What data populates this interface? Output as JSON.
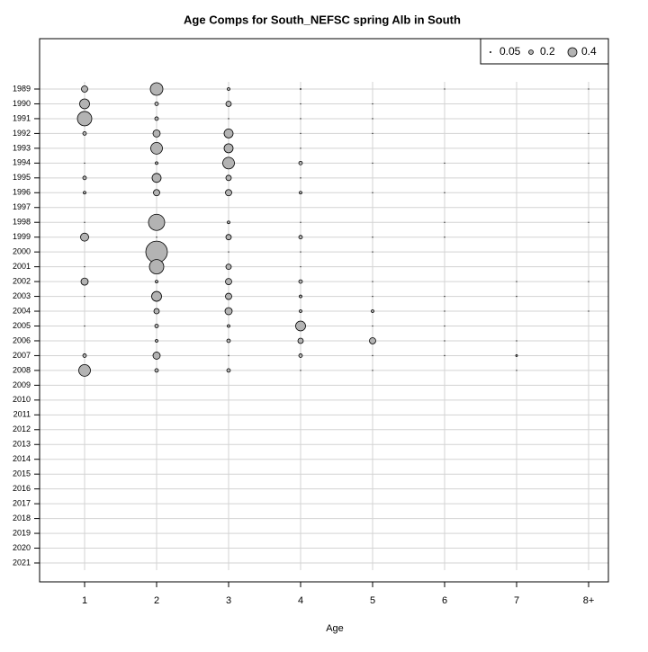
{
  "chart_data": {
    "type": "bubble",
    "title": "Age Comps for South_NEFSC spring Alb in South",
    "x_label": "Age",
    "categories": [
      "1",
      "2",
      "3",
      "4",
      "5",
      "6",
      "7",
      "8+"
    ],
    "years": [
      "1989",
      "1990",
      "1991",
      "1992",
      "1993",
      "1994",
      "1995",
      "1996",
      "1997",
      "1998",
      "1999",
      "2000",
      "2001",
      "2002",
      "2003",
      "2004",
      "2005",
      "2006",
      "2007",
      "2008",
      "2009",
      "2010",
      "2011",
      "2012",
      "2013",
      "2014",
      "2015",
      "2016",
      "2017",
      "2018",
      "2019",
      "2020",
      "2021"
    ],
    "values": [
      [
        0.28,
        0.56,
        0.12,
        0.04,
        null,
        0.02,
        null,
        0.02
      ],
      [
        0.44,
        0.16,
        0.24,
        0.02,
        0.02,
        null,
        null,
        null
      ],
      [
        0.64,
        0.16,
        0.02,
        0.02,
        0.02,
        null,
        null,
        null
      ],
      [
        0.16,
        0.32,
        0.4,
        0.02,
        0.02,
        null,
        null,
        0.02
      ],
      [
        null,
        0.52,
        0.4,
        0.02,
        null,
        null,
        null,
        null
      ],
      [
        0.02,
        0.12,
        0.52,
        0.16,
        0.02,
        0.02,
        null,
        0.02
      ],
      [
        0.16,
        0.4,
        0.24,
        0.02,
        null,
        null,
        null,
        null
      ],
      [
        0.12,
        0.28,
        0.28,
        0.12,
        0.02,
        0.02,
        null,
        null
      ],
      [
        null,
        null,
        null,
        null,
        null,
        null,
        null,
        null
      ],
      [
        0.02,
        0.72,
        0.12,
        0.02,
        null,
        0.02,
        null,
        0.02
      ],
      [
        0.36,
        0.02,
        0.24,
        0.16,
        0.02,
        0.02,
        null,
        null
      ],
      [
        null,
        0.96,
        0.02,
        0.02,
        0.02,
        null,
        null,
        null
      ],
      [
        0.02,
        0.64,
        0.24,
        0.02,
        null,
        null,
        null,
        null
      ],
      [
        0.32,
        0.12,
        0.28,
        0.16,
        0.02,
        null,
        0.02,
        0.02
      ],
      [
        0.02,
        0.44,
        0.28,
        0.12,
        0.02,
        0.02,
        0.02,
        null
      ],
      [
        null,
        0.24,
        0.32,
        0.12,
        0.12,
        0.02,
        null,
        0.02
      ],
      [
        0.02,
        0.16,
        0.12,
        0.44,
        0.02,
        0.02,
        null,
        null
      ],
      [
        null,
        0.12,
        0.16,
        0.24,
        0.28,
        0.02,
        0.02,
        null
      ],
      [
        0.16,
        0.32,
        0.02,
        0.16,
        0.02,
        0.02,
        0.08,
        null
      ],
      [
        0.52,
        0.16,
        0.16,
        0.02,
        0.02,
        null,
        0.02,
        null
      ],
      [
        null,
        null,
        null,
        null,
        null,
        null,
        null,
        null
      ],
      [
        null,
        null,
        null,
        null,
        null,
        null,
        null,
        null
      ],
      [
        null,
        null,
        null,
        null,
        null,
        null,
        null,
        null
      ],
      [
        null,
        null,
        null,
        null,
        null,
        null,
        null,
        null
      ],
      [
        null,
        null,
        null,
        null,
        null,
        null,
        null,
        null
      ],
      [
        null,
        null,
        null,
        null,
        null,
        null,
        null,
        null
      ],
      [
        null,
        null,
        null,
        null,
        null,
        null,
        null,
        null
      ],
      [
        null,
        null,
        null,
        null,
        null,
        null,
        null,
        null
      ],
      [
        null,
        null,
        null,
        null,
        null,
        null,
        null,
        null
      ],
      [
        null,
        null,
        null,
        null,
        null,
        null,
        null,
        null
      ],
      [
        null,
        null,
        null,
        null,
        null,
        null,
        null,
        null
      ],
      [
        null,
        null,
        null,
        null,
        null,
        null,
        null,
        null
      ],
      [
        null,
        null,
        null,
        null,
        null,
        null,
        null,
        null
      ]
    ],
    "size_legend": [
      0.05,
      0.2,
      0.4
    ],
    "color": "#b3b3b3",
    "grid": true
  }
}
